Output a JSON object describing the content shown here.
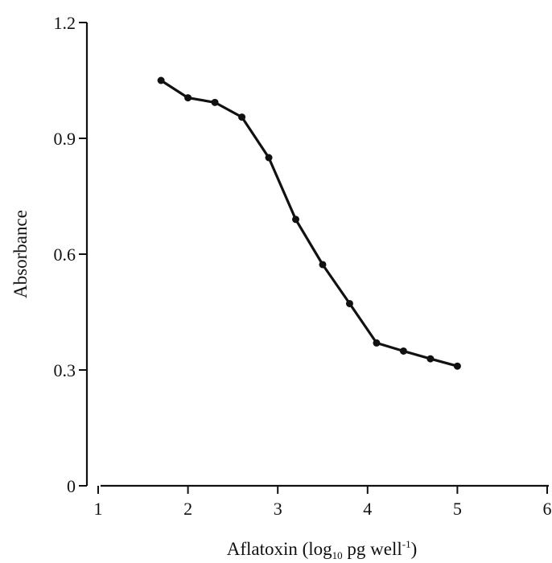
{
  "chart_data": {
    "type": "line",
    "title": "",
    "xlabel": {
      "prefix": "Aflatoxin (log",
      "subscript": "10",
      "middle": " pg well",
      "superscript": "-1",
      "suffix": ")"
    },
    "ylabel": "Absorbance",
    "xlim": [
      1,
      6
    ],
    "ylim": [
      0,
      1.2
    ],
    "x_ticks": [
      1,
      2,
      3,
      4,
      5,
      6
    ],
    "x_tick_labels": [
      "1",
      "2",
      "3",
      "4",
      "5",
      "6"
    ],
    "y_ticks": [
      0,
      0.3,
      0.6,
      0.9,
      1.2
    ],
    "y_tick_labels": [
      "0",
      "0.3",
      "0.6",
      "0.9",
      "1.2"
    ],
    "grid": false,
    "legend": "none",
    "series": [
      {
        "color": "#111111",
        "marker": "circle",
        "points": [
          {
            "x": 1.7,
            "y": 1.05
          },
          {
            "x": 2.0,
            "y": 1.005
          },
          {
            "x": 2.3,
            "y": 0.993
          },
          {
            "x": 2.6,
            "y": 0.955
          },
          {
            "x": 2.9,
            "y": 0.85
          },
          {
            "x": 3.2,
            "y": 0.69
          },
          {
            "x": 3.5,
            "y": 0.573
          },
          {
            "x": 3.8,
            "y": 0.472
          },
          {
            "x": 4.1,
            "y": 0.37
          },
          {
            "x": 4.4,
            "y": 0.349
          },
          {
            "x": 4.7,
            "y": 0.329
          },
          {
            "x": 5.0,
            "y": 0.31
          }
        ]
      }
    ]
  }
}
